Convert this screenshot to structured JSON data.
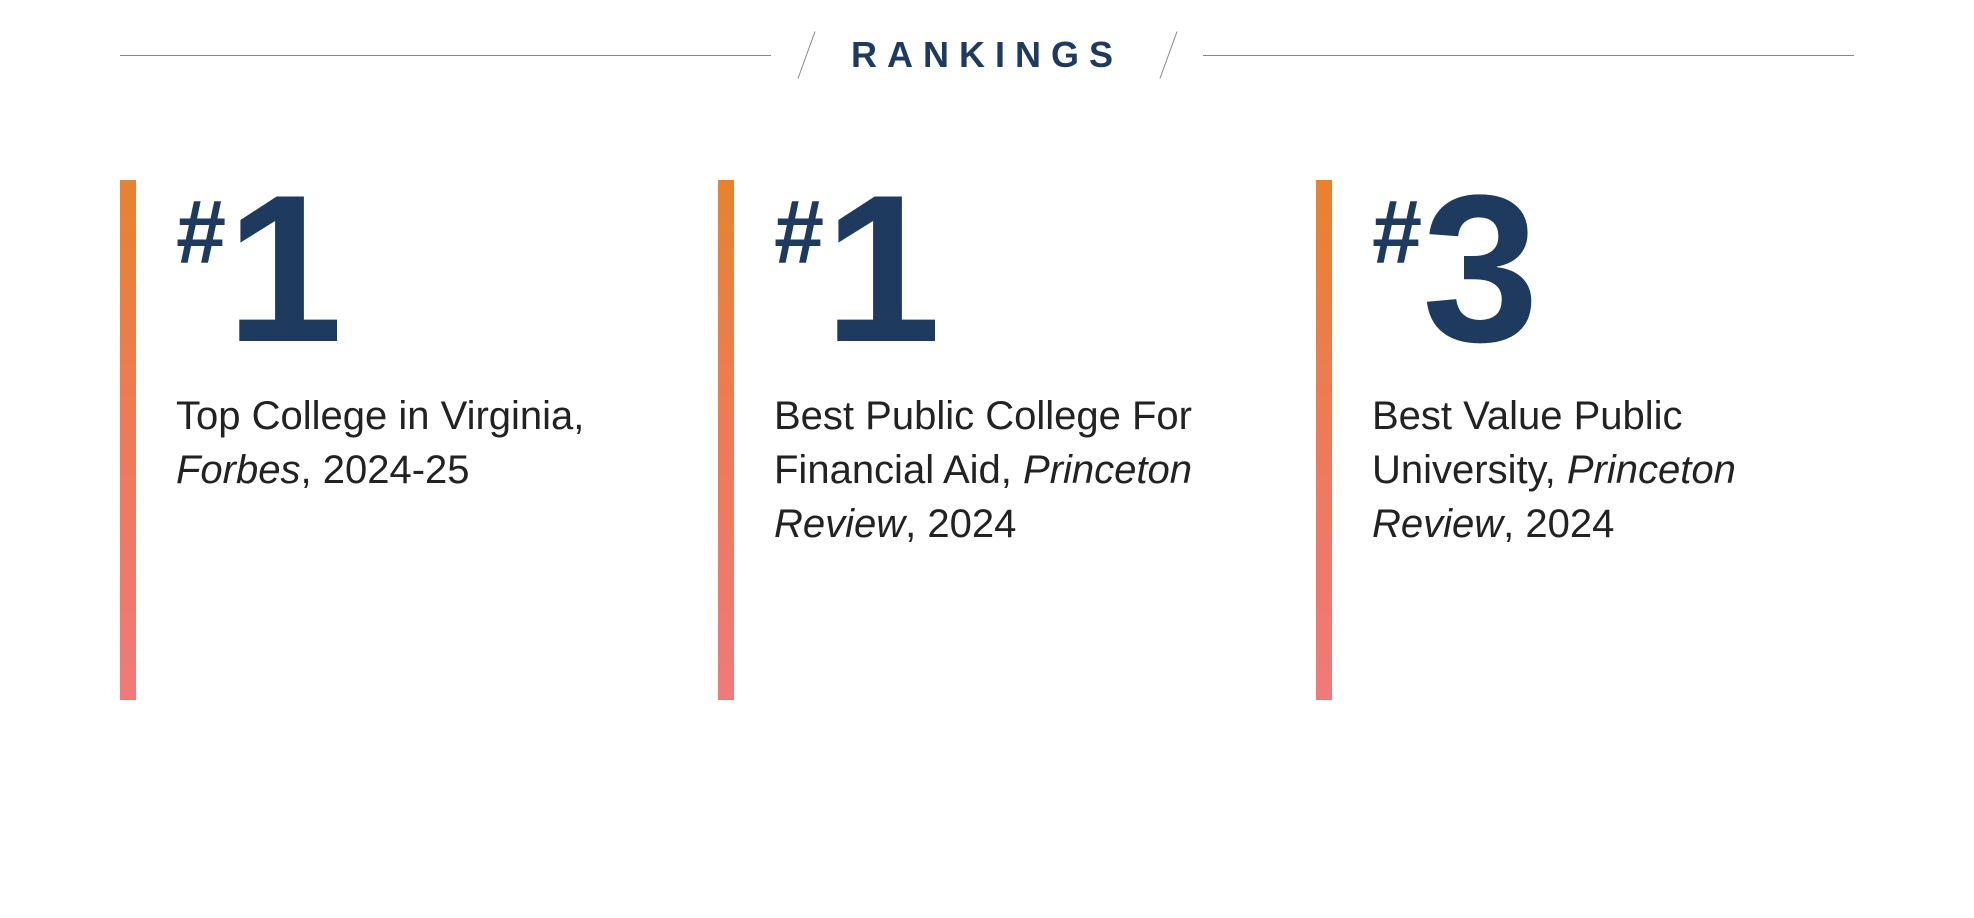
{
  "header": {
    "title": "RANKINGS"
  },
  "colors": {
    "navy": "#1f3a5f",
    "gradient_top": "#e8822f",
    "gradient_mid": "#ec7b5a",
    "gradient_bottom": "#ef7a7a",
    "line": "#888888",
    "body_text": "#222222",
    "background": "#ffffff"
  },
  "typography": {
    "header_fontsize": 36,
    "header_letterspacing": 10,
    "hash_fontsize": 90,
    "number_fontsize": 210,
    "description_fontsize": 40
  },
  "layout": {
    "card_count": 3,
    "accent_bar_width": 16,
    "card_gap": 60
  },
  "cards": [
    {
      "rank_symbol": "#",
      "rank_number": "1",
      "description_plain": "Top College in Virginia, ",
      "description_italic": "Forbes",
      "description_tail": ", 2024-25"
    },
    {
      "rank_symbol": "#",
      "rank_number": "1",
      "description_plain": "Best Public College For Financial Aid, ",
      "description_italic": "Princeton Review",
      "description_tail": ", 2024"
    },
    {
      "rank_symbol": "#",
      "rank_number": "3",
      "description_plain": "Best Value Public University, ",
      "description_italic": "Princeton Review",
      "description_tail": ", 2024"
    }
  ]
}
